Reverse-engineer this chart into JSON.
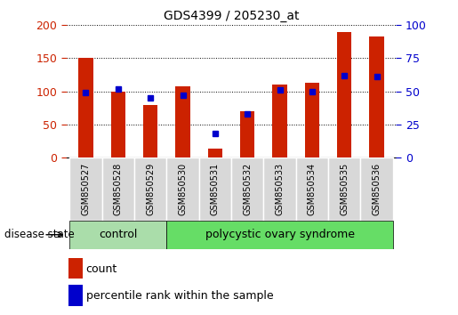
{
  "title": "GDS4399 / 205230_at",
  "samples": [
    "GSM850527",
    "GSM850528",
    "GSM850529",
    "GSM850530",
    "GSM850531",
    "GSM850532",
    "GSM850533",
    "GSM850534",
    "GSM850535",
    "GSM850536"
  ],
  "count_values": [
    150,
    100,
    80,
    107,
    13,
    70,
    110,
    113,
    190,
    183
  ],
  "percentile_values": [
    49,
    52,
    45,
    47,
    18,
    33,
    51,
    50,
    62,
    61
  ],
  "ylim_left": [
    0,
    200
  ],
  "ylim_right": [
    0,
    100
  ],
  "yticks_left": [
    0,
    50,
    100,
    150,
    200
  ],
  "yticks_right": [
    0,
    25,
    50,
    75,
    100
  ],
  "bar_color": "#cc2200",
  "dot_color": "#0000cc",
  "control_color": "#aaddaa",
  "pcos_color": "#66dd66",
  "label_bg_color": "#d8d8d8",
  "control_label": "control",
  "pcos_label": "polycystic ovary syndrome",
  "disease_state_label": "disease state",
  "legend_count": "count",
  "legend_percentile": "percentile rank within the sample",
  "n_control": 3,
  "bar_width": 0.45,
  "fig_width": 5.15,
  "fig_height": 3.54,
  "dpi": 100
}
